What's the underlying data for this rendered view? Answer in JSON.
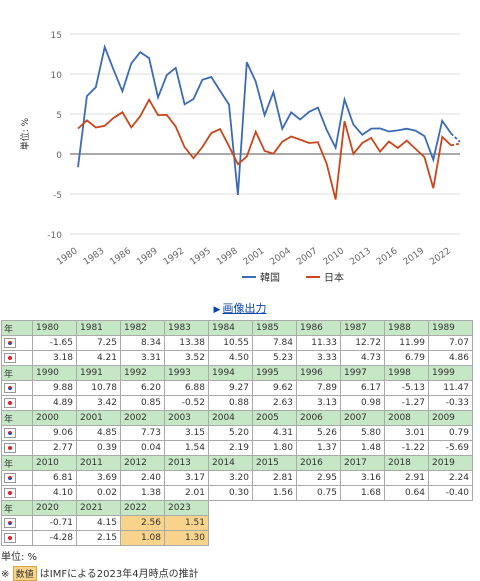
{
  "chart_data": {
    "type": "line",
    "ylabel": "単位: %",
    "ylim": [
      -10,
      15
    ],
    "yticks": [
      15,
      10,
      5,
      0,
      -5,
      -10
    ],
    "xticks": [
      1980,
      1983,
      1986,
      1989,
      1992,
      1995,
      1998,
      2001,
      2004,
      2007,
      2010,
      2013,
      2016,
      2019,
      2022
    ],
    "x": [
      1980,
      1981,
      1982,
      1983,
      1984,
      1985,
      1986,
      1987,
      1988,
      1989,
      1990,
      1991,
      1992,
      1993,
      1994,
      1995,
      1996,
      1997,
      1998,
      1999,
      2000,
      2001,
      2002,
      2003,
      2004,
      2005,
      2006,
      2007,
      2008,
      2009,
      2010,
      2011,
      2012,
      2013,
      2014,
      2015,
      2016,
      2017,
      2018,
      2019,
      2020,
      2021,
      2022,
      2023
    ],
    "estimate_from": 2022,
    "legend_position": "bottom",
    "series": [
      {
        "name": "韓国",
        "color": "#3b6bb5",
        "values": [
          -1.65,
          7.25,
          8.34,
          13.38,
          10.55,
          7.84,
          11.33,
          12.72,
          11.99,
          7.07,
          9.88,
          10.78,
          6.2,
          6.88,
          9.27,
          9.62,
          7.89,
          6.17,
          -5.13,
          11.47,
          9.06,
          4.85,
          7.73,
          3.15,
          5.2,
          4.31,
          5.26,
          5.8,
          3.01,
          0.79,
          6.81,
          3.69,
          2.4,
          3.17,
          3.2,
          2.81,
          2.95,
          3.16,
          2.91,
          2.24,
          -0.71,
          4.15,
          2.56,
          1.51
        ]
      },
      {
        "name": "日本",
        "color": "#c9471a",
        "values": [
          3.18,
          4.21,
          3.31,
          3.52,
          4.5,
          5.23,
          3.33,
          4.73,
          6.79,
          4.86,
          4.89,
          3.42,
          0.85,
          -0.52,
          0.88,
          2.63,
          3.13,
          0.98,
          -1.27,
          -0.33,
          2.77,
          0.39,
          0.04,
          1.54,
          2.19,
          1.8,
          1.37,
          1.48,
          -1.22,
          -5.69,
          4.1,
          0.02,
          1.38,
          2.01,
          0.3,
          1.56,
          0.75,
          1.68,
          0.64,
          -0.4,
          -4.28,
          2.15,
          1.08,
          1.3
        ]
      }
    ]
  },
  "export_label": "画像出力",
  "table": {
    "header_label": "年",
    "rows": [
      {
        "years": [
          "1980",
          "1981",
          "1982",
          "1983",
          "1984",
          "1985",
          "1986",
          "1987",
          "1988",
          "1989"
        ],
        "kr": [
          "-1.65",
          "7.25",
          "8.34",
          "13.38",
          "10.55",
          "7.84",
          "11.33",
          "12.72",
          "11.99",
          "7.07"
        ],
        "jp": [
          "3.18",
          "4.21",
          "3.31",
          "3.52",
          "4.50",
          "5.23",
          "3.33",
          "4.73",
          "6.79",
          "4.86"
        ]
      },
      {
        "years": [
          "1990",
          "1991",
          "1992",
          "1993",
          "1994",
          "1995",
          "1996",
          "1997",
          "1998",
          "1999"
        ],
        "kr": [
          "9.88",
          "10.78",
          "6.20",
          "6.88",
          "9.27",
          "9.62",
          "7.89",
          "6.17",
          "-5.13",
          "11.47"
        ],
        "jp": [
          "4.89",
          "3.42",
          "0.85",
          "-0.52",
          "0.88",
          "2.63",
          "3.13",
          "0.98",
          "-1.27",
          "-0.33"
        ]
      },
      {
        "years": [
          "2000",
          "2001",
          "2002",
          "2003",
          "2004",
          "2005",
          "2006",
          "2007",
          "2008",
          "2009"
        ],
        "kr": [
          "9.06",
          "4.85",
          "7.73",
          "3.15",
          "5.20",
          "4.31",
          "5.26",
          "5.80",
          "3.01",
          "0.79"
        ],
        "jp": [
          "2.77",
          "0.39",
          "0.04",
          "1.54",
          "2.19",
          "1.80",
          "1.37",
          "1.48",
          "-1.22",
          "-5.69"
        ]
      },
      {
        "years": [
          "2010",
          "2011",
          "2012",
          "2013",
          "2014",
          "2015",
          "2016",
          "2017",
          "2018",
          "2019"
        ],
        "kr": [
          "6.81",
          "3.69",
          "2.40",
          "3.17",
          "3.20",
          "2.81",
          "2.95",
          "3.16",
          "2.91",
          "2.24"
        ],
        "jp": [
          "4.10",
          "0.02",
          "1.38",
          "2.01",
          "0.30",
          "1.56",
          "0.75",
          "1.68",
          "0.64",
          "-0.40"
        ]
      },
      {
        "years": [
          "2020",
          "2021",
          "2022",
          "2023"
        ],
        "kr": [
          "-0.71",
          "4.15",
          "2.56",
          "1.51"
        ],
        "jp": [
          "-4.28",
          "2.15",
          "1.08",
          "1.30"
        ]
      }
    ]
  },
  "unit_label": "単位: %",
  "note_prefix": "※",
  "note_badge": "数値",
  "note_text": "はIMFによる2023年4月時点の推計"
}
